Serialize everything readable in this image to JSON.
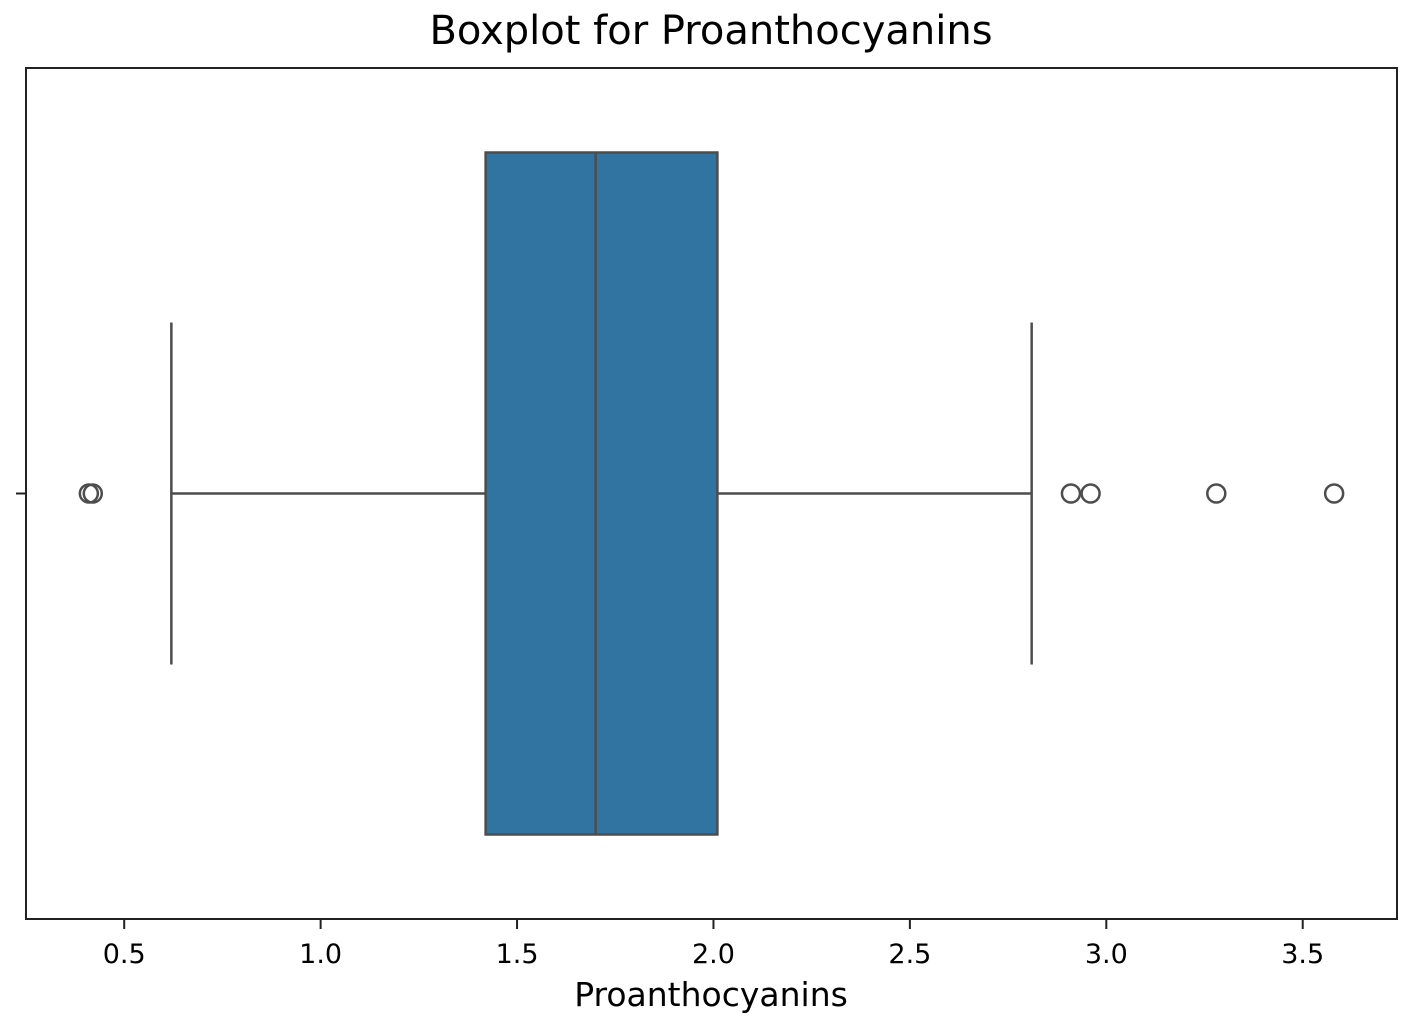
{
  "chart_data": {
    "type": "boxplot",
    "orientation": "horizontal",
    "title": "Boxplot for Proanthocyanins",
    "xlabel": "Proanthocyanins",
    "ylabel": "",
    "xlim": [
      0.25,
      3.74
    ],
    "xticks": [
      0.5,
      1.0,
      1.5,
      2.0,
      2.5,
      3.0,
      3.5
    ],
    "xtick_labels": [
      "0.5",
      "1.0",
      "1.5",
      "2.0",
      "2.5",
      "3.0",
      "3.5"
    ],
    "box": {
      "whisker_low": 0.62,
      "q1": 1.42,
      "median": 1.7,
      "q3": 2.01,
      "whisker_high": 2.81
    },
    "outliers": [
      0.41,
      0.42,
      2.91,
      2.96,
      3.28,
      3.58
    ],
    "grid": false,
    "legend": "none",
    "colors": {
      "box_fill": "#3274a1",
      "lines": "#4d4d4d",
      "outlier_edge": "#4d4d4d",
      "axes": "#222222"
    }
  }
}
